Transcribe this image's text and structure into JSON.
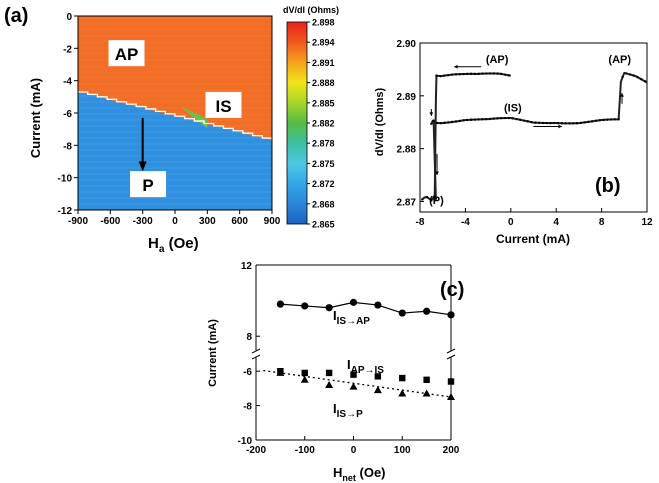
{
  "chart_data": [
    {
      "type": "heatmap",
      "panel_label": "(a)",
      "xlabel": "H",
      "xlabel_sub": "a",
      "xlabel_unit": " (Oe)",
      "ylabel": "Current (mA)",
      "xlim": [
        -900,
        900
      ],
      "ylim": [
        -12,
        0
      ],
      "xticks": [
        "-900",
        "-600",
        "-300",
        "0",
        "300",
        "600",
        "900"
      ],
      "xtick_values": [
        -900,
        -600,
        -300,
        0,
        300,
        600,
        900
      ],
      "yticks": [
        "0",
        "-2",
        "-4",
        "-6",
        "-8",
        "-10",
        "-12"
      ],
      "ytick_values": [
        0,
        -2,
        -4,
        -6,
        -8,
        -10,
        -12
      ],
      "colorbar_title": "dV/dI (Ohms)",
      "colorbar_ticks": [
        "2.898",
        "2.894",
        "2.891",
        "2.888",
        "2.885",
        "2.882",
        "2.878",
        "2.875",
        "2.872",
        "2.868",
        "2.865"
      ],
      "colorbar_colors": [
        "#e8231c",
        "#f0591f",
        "#f5a21d",
        "#f2e51a",
        "#a8d42c",
        "#56bc46",
        "#3dbfa0",
        "#4fc7e3",
        "#34a6e6",
        "#2a86d9",
        "#1e5fc2"
      ],
      "regions": [
        {
          "name": "AP",
          "color": "#f26a21"
        },
        {
          "name": "IS",
          "color": "#6dbb45"
        },
        {
          "name": "P",
          "color": "#2b8ee0"
        }
      ],
      "ap_p_boundary": [
        [
          -900,
          -4.7
        ],
        [
          900,
          -7.7
        ]
      ],
      "is_boundary": [
        [
          50,
          -5.6
        ],
        [
          900,
          -7.9
        ]
      ],
      "annotations": [
        "AP",
        "IS",
        "P"
      ]
    },
    {
      "type": "line",
      "panel_label": "(b)",
      "xlabel": "Current (mA)",
      "ylabel": "dV/dI (Ohms)",
      "xlim": [
        -8,
        12
      ],
      "ylim": [
        2.868,
        2.9
      ],
      "xticks": [
        "-8",
        "-4",
        "0",
        "4",
        "8",
        "12"
      ],
      "xtick_values": [
        -8,
        -4,
        0,
        4,
        8,
        12
      ],
      "yticks": [
        "2.90",
        "2.89",
        "2.88",
        "2.87"
      ],
      "ytick_values": [
        2.9,
        2.89,
        2.88,
        2.87
      ],
      "branches": [
        {
          "x": [
            -7.8,
            -7.4,
            -7.0,
            -6.7,
            -6.6,
            -6.55,
            -6.2,
            -5.0,
            -3.0,
            -1.0,
            0.0
          ],
          "y": [
            2.8705,
            2.8705,
            2.8705,
            2.871,
            2.889,
            2.8935,
            2.8935,
            2.894,
            2.8938,
            2.894,
            2.8938
          ]
        },
        {
          "x": [
            -7.0,
            -6.9,
            -6.8,
            -6.0,
            -4.0,
            -2.0,
            0.0,
            2.0,
            4.0,
            6.0,
            8.0,
            9.5,
            9.7,
            10.0,
            11.0,
            12.0
          ],
          "y": [
            2.885,
            2.885,
            2.885,
            2.8852,
            2.8855,
            2.8853,
            2.8855,
            2.885,
            2.8852,
            2.885,
            2.8852,
            2.8852,
            2.8925,
            2.894,
            2.8935,
            2.8925
          ]
        },
        {
          "x": [
            -6.8,
            -6.7,
            -6.6
          ],
          "y": [
            2.885,
            2.878,
            2.8705
          ]
        }
      ],
      "annotations": [
        "(AP)",
        "(AP)",
        "(IS)",
        "(P)"
      ]
    },
    {
      "type": "scatter",
      "panel_label": "(c)",
      "xlabel": "H",
      "xlabel_sub": "net",
      "xlabel_unit": " (Oe)",
      "ylabel": "Current (mA)",
      "xlim": [
        -200,
        200
      ],
      "xticks": [
        "-200",
        "-100",
        "0",
        "100",
        "200"
      ],
      "xtick_values": [
        -200,
        -100,
        0,
        100,
        200
      ],
      "upper_ylim": [
        7,
        12
      ],
      "upper_yticks": [
        "12",
        "8"
      ],
      "upper_ytick_values": [
        12,
        8
      ],
      "lower_ylim": [
        -10,
        -5
      ],
      "lower_yticks": [
        "-6",
        "-8",
        "-10"
      ],
      "lower_ytick_values": [
        -6,
        -8,
        -10
      ],
      "series": [
        {
          "name": "I",
          "name_sub": "IS→AP",
          "marker": "circle",
          "line": "solid",
          "x": [
            -150,
            -100,
            -50,
            0,
            50,
            100,
            150,
            200
          ],
          "y": [
            9.8,
            9.7,
            9.6,
            9.9,
            9.75,
            9.3,
            9.4,
            9.2
          ]
        },
        {
          "name": "I",
          "name_sub": "AP→IS",
          "marker": "square",
          "line": "none",
          "x": [
            -150,
            -100,
            -50,
            0,
            50,
            100,
            150,
            200
          ],
          "y": [
            -6.0,
            -6.1,
            -6.1,
            -6.2,
            -6.3,
            -6.4,
            -6.5,
            -6.6
          ]
        },
        {
          "name": "I",
          "name_sub": "IS→P",
          "marker": "triangle",
          "line": "dotted",
          "x": [
            -150,
            -100,
            -50,
            0,
            50,
            100,
            150,
            200
          ],
          "y": [
            -6.1,
            -6.5,
            -6.8,
            -6.9,
            -7.1,
            -7.3,
            -7.3,
            -7.5
          ]
        }
      ]
    }
  ]
}
